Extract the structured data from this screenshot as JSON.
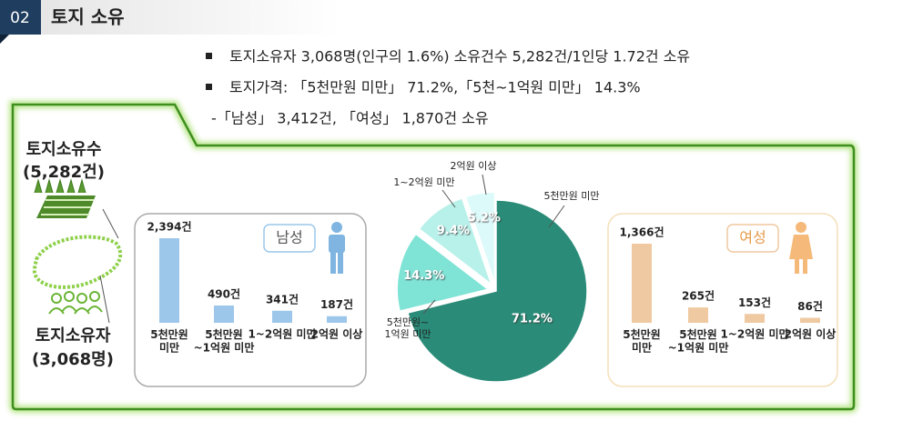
{
  "header": {
    "number": "02",
    "title": "토지 소유"
  },
  "bullets": [
    "토지소유자 3,068명(인구의 1.6%) 소유건수 5,282건/1인당 1.72건 소유",
    "토지가격: 「5천만원 미만」 71.2%,「5천~1억원 미만」 14.3%"
  ],
  "sub_bullet": "-「남성」 3,412건, 「여성」 1,870건 소유",
  "left": {
    "count_label": "토지소유수",
    "count_value": "(5,282건)",
    "owner_label": "토지소유자",
    "owner_value": "(3,068명)"
  },
  "chart_data": [
    {
      "type": "bar",
      "title": "남성",
      "categories": [
        "5천만원\n미만",
        "5천만원\n~1억원 미만",
        "1~2억원 미만",
        "2억원 이상"
      ],
      "values": [
        2394,
        490,
        341,
        187
      ],
      "value_labels": [
        "2,394건",
        "490건",
        "341건",
        "187건"
      ],
      "color": "#9cc7ea"
    },
    {
      "type": "pie",
      "categories": [
        "5천만원 미만",
        "5천만원~\n1억원 미만",
        "1~2억원 미만",
        "2억원 이상"
      ],
      "values": [
        71.2,
        14.3,
        9.4,
        5.2
      ],
      "value_labels": [
        "71.2%",
        "14.3%",
        "9.4%",
        "5.2%"
      ],
      "colors": [
        "#2a8c78",
        "#7fe3d6",
        "#b8f1ea",
        "#ddfafa"
      ]
    },
    {
      "type": "bar",
      "title": "여성",
      "categories": [
        "5천만원\n미만",
        "5천만원\n~1억원 미만",
        "1~2억원 미만",
        "2억원 이상"
      ],
      "values": [
        1366,
        265,
        153,
        86
      ],
      "value_labels": [
        "1,366건",
        "265건",
        "153건",
        "86건"
      ],
      "color": "#efc9a1"
    }
  ]
}
